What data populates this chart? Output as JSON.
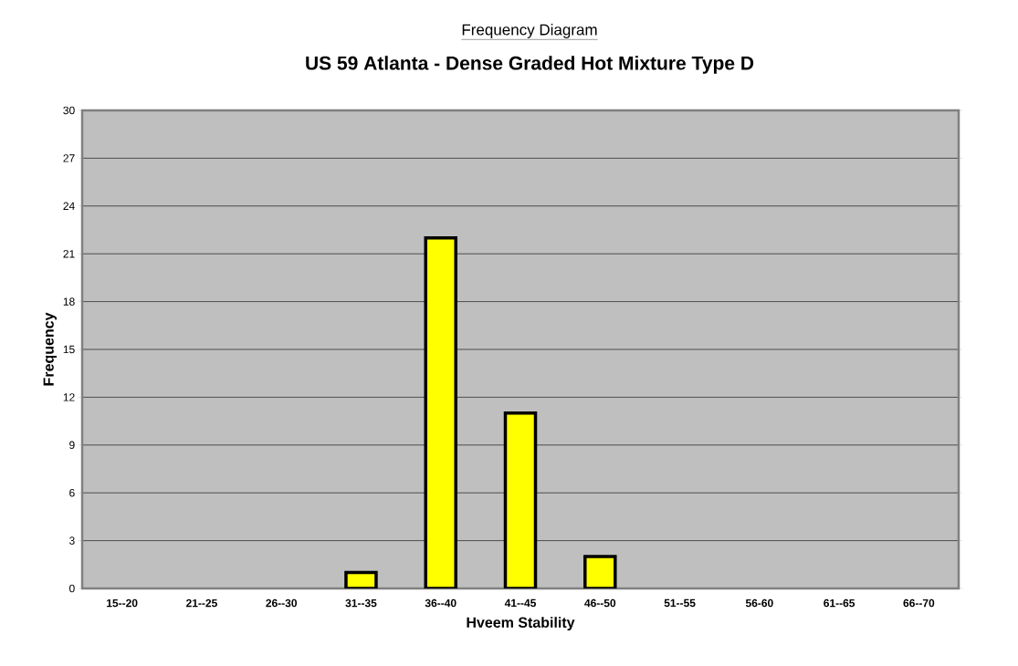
{
  "chart_data": {
    "type": "bar",
    "title": "Frequency Diagram",
    "subtitle": "US 59 Atlanta - Dense Graded Hot Mixture Type D",
    "xlabel": "Hveem Stability",
    "ylabel": "Frequency",
    "categories": [
      "15--20",
      "21--25",
      "26--30",
      "31--35",
      "36--40",
      "41--45",
      "46--50",
      "51--55",
      "56-60",
      "61--65",
      "66--70"
    ],
    "values": [
      0,
      0,
      0,
      1,
      22,
      11,
      2,
      0,
      0,
      0,
      0
    ],
    "color": "#ffff00",
    "ylim": [
      0,
      30
    ],
    "yticks": [
      0,
      3,
      6,
      9,
      12,
      15,
      18,
      21,
      24,
      27,
      30
    ],
    "grid": "y"
  }
}
